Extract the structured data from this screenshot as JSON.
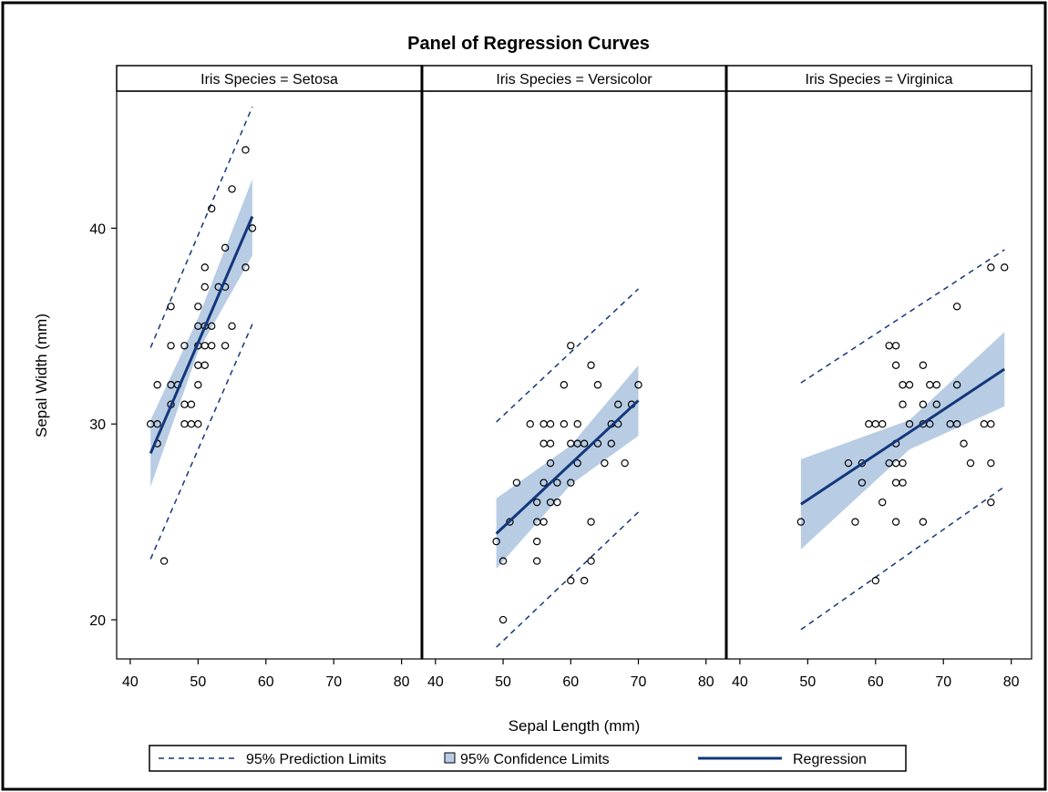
{
  "chart_data": {
    "type": "scatter",
    "title": "Panel of Regression Curves",
    "xlabel": "Sepal Length (mm)",
    "ylabel": "Sepal Width (mm)",
    "xlim": [
      38,
      83
    ],
    "ylim": [
      18,
      47
    ],
    "x_ticks": [
      40,
      50,
      60,
      70,
      80
    ],
    "y_ticks": [
      20,
      30,
      40
    ],
    "grid": false,
    "legend_position": "bottom",
    "colors": {
      "regression": "#13377a",
      "confidence": "#b8cce4",
      "prediction": "#13377a",
      "points": "#000000"
    },
    "legend": [
      {
        "key": "prediction",
        "label": "95% Prediction Limits"
      },
      {
        "key": "confidence",
        "label": "95% Confidence Limits"
      },
      {
        "key": "regression",
        "label": "Regression"
      }
    ],
    "panels": [
      {
        "label": "Iris Species = Setosa",
        "x_range": [
          43,
          58
        ],
        "regression": [
          [
            43,
            28.5
          ],
          [
            58,
            40.6
          ]
        ],
        "confidence_upper": [
          [
            43,
            30.2
          ],
          [
            50,
            35.4
          ],
          [
            58,
            42.5
          ]
        ],
        "confidence_lower": [
          [
            43,
            26.8
          ],
          [
            50,
            33.7
          ],
          [
            58,
            38.6
          ]
        ],
        "prediction_upper": [
          [
            43,
            33.9
          ],
          [
            58,
            46.2
          ]
        ],
        "prediction_lower": [
          [
            43,
            23.1
          ],
          [
            58,
            35.1
          ]
        ],
        "points": [
          [
            43,
            30
          ],
          [
            44,
            30
          ],
          [
            44,
            29
          ],
          [
            44,
            32
          ],
          [
            45,
            23
          ],
          [
            46,
            31
          ],
          [
            46,
            32
          ],
          [
            46,
            34
          ],
          [
            46,
            36
          ],
          [
            47,
            32
          ],
          [
            48,
            30
          ],
          [
            48,
            31
          ],
          [
            48,
            34
          ],
          [
            49,
            30
          ],
          [
            49,
            31
          ],
          [
            50,
            30
          ],
          [
            50,
            32
          ],
          [
            50,
            33
          ],
          [
            50,
            34
          ],
          [
            50,
            35
          ],
          [
            50,
            36
          ],
          [
            51,
            33
          ],
          [
            51,
            34
          ],
          [
            51,
            35
          ],
          [
            51,
            37
          ],
          [
            51,
            38
          ],
          [
            52,
            34
          ],
          [
            52,
            35
          ],
          [
            52,
            41
          ],
          [
            53,
            37
          ],
          [
            54,
            34
          ],
          [
            54,
            37
          ],
          [
            54,
            39
          ],
          [
            55,
            35
          ],
          [
            55,
            42
          ],
          [
            57,
            38
          ],
          [
            57,
            44
          ],
          [
            58,
            40
          ]
        ]
      },
      {
        "label": "Iris Species = Versicolor",
        "x_range": [
          49,
          70
        ],
        "regression": [
          [
            49,
            24.4
          ],
          [
            70,
            31.2
          ]
        ],
        "confidence_upper": [
          [
            49,
            26.2
          ],
          [
            60,
            28.9
          ],
          [
            70,
            33.0
          ]
        ],
        "confidence_lower": [
          [
            49,
            22.6
          ],
          [
            60,
            26.9
          ],
          [
            70,
            29.4
          ]
        ],
        "prediction_upper": [
          [
            49,
            30.1
          ],
          [
            70,
            36.9
          ]
        ],
        "prediction_lower": [
          [
            49,
            18.6
          ],
          [
            70,
            25.5
          ]
        ],
        "points": [
          [
            49,
            24
          ],
          [
            50,
            20
          ],
          [
            50,
            23
          ],
          [
            51,
            25
          ],
          [
            52,
            27
          ],
          [
            54,
            30
          ],
          [
            55,
            23
          ],
          [
            55,
            24
          ],
          [
            55,
            25
          ],
          [
            55,
            26
          ],
          [
            56,
            25
          ],
          [
            56,
            27
          ],
          [
            56,
            29
          ],
          [
            56,
            30
          ],
          [
            57,
            26
          ],
          [
            57,
            28
          ],
          [
            57,
            29
          ],
          [
            57,
            30
          ],
          [
            58,
            26
          ],
          [
            58,
            27
          ],
          [
            59,
            30
          ],
          [
            59,
            32
          ],
          [
            60,
            22
          ],
          [
            60,
            27
          ],
          [
            60,
            29
          ],
          [
            60,
            34
          ],
          [
            61,
            28
          ],
          [
            61,
            29
          ],
          [
            61,
            30
          ],
          [
            62,
            22
          ],
          [
            62,
            29
          ],
          [
            63,
            23
          ],
          [
            63,
            25
          ],
          [
            63,
            33
          ],
          [
            64,
            29
          ],
          [
            64,
            32
          ],
          [
            65,
            28
          ],
          [
            66,
            29
          ],
          [
            66,
            30
          ],
          [
            67,
            30
          ],
          [
            67,
            31
          ],
          [
            68,
            28
          ],
          [
            69,
            31
          ],
          [
            70,
            32
          ]
        ]
      },
      {
        "label": "Iris Species = Virginica",
        "x_range": [
          49,
          79
        ],
        "regression": [
          [
            49,
            25.9
          ],
          [
            79,
            32.8
          ]
        ],
        "confidence_upper": [
          [
            49,
            28.2
          ],
          [
            65,
            30.2
          ],
          [
            79,
            34.7
          ]
        ],
        "confidence_lower": [
          [
            49,
            23.6
          ],
          [
            65,
            28.7
          ],
          [
            79,
            30.9
          ]
        ],
        "prediction_upper": [
          [
            49,
            32.1
          ],
          [
            79,
            38.9
          ]
        ],
        "prediction_lower": [
          [
            49,
            19.5
          ],
          [
            79,
            26.8
          ]
        ],
        "points": [
          [
            49,
            25
          ],
          [
            56,
            28
          ],
          [
            57,
            25
          ],
          [
            58,
            27
          ],
          [
            58,
            28
          ],
          [
            59,
            30
          ],
          [
            60,
            22
          ],
          [
            60,
            30
          ],
          [
            61,
            26
          ],
          [
            61,
            30
          ],
          [
            62,
            28
          ],
          [
            62,
            34
          ],
          [
            63,
            25
          ],
          [
            63,
            27
          ],
          [
            63,
            28
          ],
          [
            63,
            29
          ],
          [
            63,
            33
          ],
          [
            63,
            34
          ],
          [
            64,
            27
          ],
          [
            64,
            28
          ],
          [
            64,
            31
          ],
          [
            64,
            32
          ],
          [
            65,
            30
          ],
          [
            65,
            32
          ],
          [
            67,
            25
          ],
          [
            67,
            30
          ],
          [
            67,
            31
          ],
          [
            67,
            33
          ],
          [
            68,
            30
          ],
          [
            68,
            32
          ],
          [
            69,
            31
          ],
          [
            69,
            32
          ],
          [
            71,
            30
          ],
          [
            72,
            30
          ],
          [
            72,
            32
          ],
          [
            72,
            36
          ],
          [
            73,
            29
          ],
          [
            74,
            28
          ],
          [
            76,
            30
          ],
          [
            77,
            26
          ],
          [
            77,
            28
          ],
          [
            77,
            30
          ],
          [
            77,
            38
          ],
          [
            79,
            38
          ]
        ]
      }
    ]
  }
}
